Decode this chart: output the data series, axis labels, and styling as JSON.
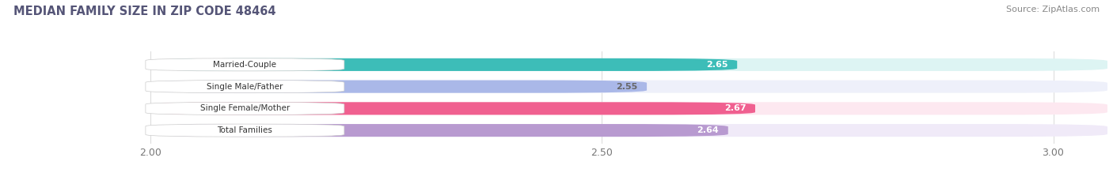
{
  "title": "MEDIAN FAMILY SIZE IN ZIP CODE 48464",
  "source": "Source: ZipAtlas.com",
  "categories": [
    "Married-Couple",
    "Single Male/Father",
    "Single Female/Mother",
    "Total Families"
  ],
  "values": [
    2.65,
    2.55,
    2.67,
    2.64
  ],
  "bar_colors": [
    "#3dbdb8",
    "#aab8e8",
    "#f06090",
    "#b89ad0"
  ],
  "bar_bg_colors": [
    "#ddf4f3",
    "#eef0fa",
    "#fde8f0",
    "#f0eaf8"
  ],
  "xlim_left": 1.84,
  "xlim_right": 3.06,
  "xstart": 2.0,
  "xticks": [
    2.0,
    2.5,
    3.0
  ],
  "xtick_labels": [
    "2.00",
    "2.50",
    "3.00"
  ],
  "value_label_colors": [
    "#ffffff",
    "#666666",
    "#ffffff",
    "#ffffff"
  ],
  "bar_height": 0.58,
  "figsize": [
    14.06,
    2.33
  ],
  "dpi": 100,
  "bg_color": "#ffffff",
  "title_color": "#555577",
  "source_color": "#888888"
}
